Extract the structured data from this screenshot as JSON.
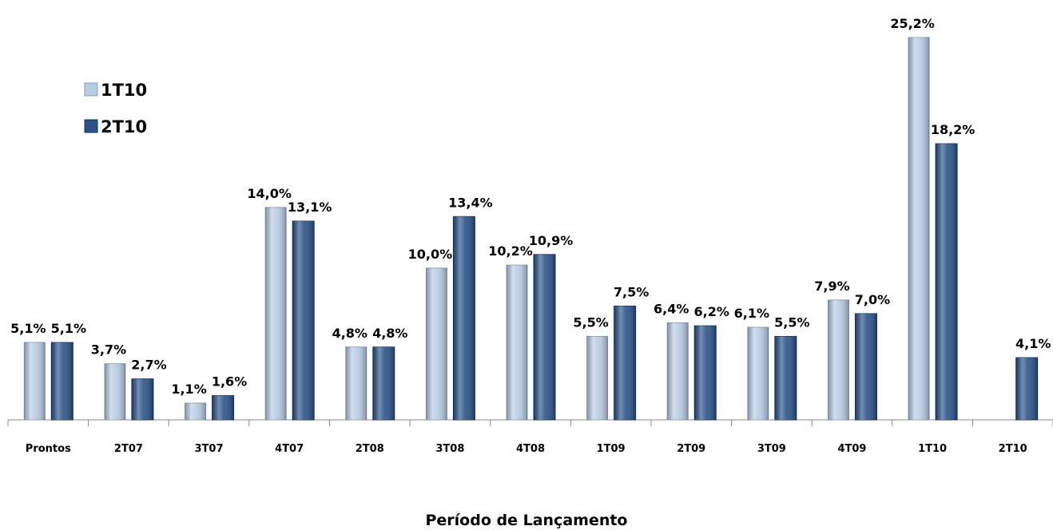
{
  "chart_data": {
    "type": "bar",
    "x_label": "Período de Lançamento",
    "categories": [
      "Prontos",
      "2T07",
      "3T07",
      "4T07",
      "2T08",
      "3T08",
      "4T08",
      "1T09",
      "2T09",
      "3T09",
      "4T09",
      "1T10",
      "2T10"
    ],
    "series": [
      {
        "name": "1T10",
        "color": "#b8cce4",
        "values": [
          5.1,
          3.7,
          1.1,
          14.0,
          4.8,
          10.0,
          10.2,
          5.5,
          6.4,
          6.1,
          7.9,
          25.2,
          null
        ],
        "value_labels": [
          "5,1%",
          "3,7%",
          "1,1%",
          "14,0%",
          "4,8%",
          "10,0%",
          "10,2%",
          "5,5%",
          "6,4%",
          "6,1%",
          "7,9%",
          "25,2%",
          null
        ]
      },
      {
        "name": "2T10",
        "color": "#2a5288",
        "values": [
          5.1,
          2.7,
          1.6,
          13.1,
          4.8,
          13.4,
          10.9,
          7.5,
          6.2,
          5.5,
          7.0,
          18.2,
          4.1
        ],
        "value_labels": [
          "5,1%",
          "2,7%",
          "1,6%",
          "13,1%",
          "4,8%",
          "13,4%",
          "10,9%",
          "7,5%",
          "6,2%",
          "5,5%",
          "7,0%",
          "18,2%",
          "4,1%"
        ]
      }
    ],
    "legend": "upper-left"
  }
}
